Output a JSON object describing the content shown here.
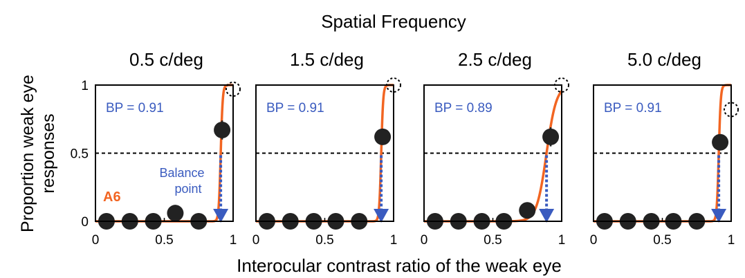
{
  "figure": {
    "super_title": "Spatial Frequency",
    "xlabel": "Interocular contrast ratio of the weak eye",
    "ylabel_lines": [
      "Proportion weak eye",
      "responses"
    ],
    "subject_label": "A6",
    "balance_label_lines": [
      "Balance",
      "point"
    ]
  },
  "colors": {
    "fit_curve": "#f26522",
    "balance_text": "#3a5bbf",
    "arrow": "#3a5bbf",
    "data_point": "#222222",
    "subject_label": "#f26522",
    "axis": "#000000"
  },
  "chart_data": [
    {
      "type": "scatter",
      "title": "0.5 c/deg",
      "bp_label": "BP = 0.91",
      "balance_point": 0.91,
      "xlim": [
        0,
        1
      ],
      "ylim": [
        0,
        1
      ],
      "xticks": [
        0,
        0.5,
        1
      ],
      "xtick_labels": [
        "0",
        "0.5",
        "1"
      ],
      "yticks": [
        0,
        0.5,
        1
      ],
      "ytick_labels": [
        "0",
        "0.5",
        "1"
      ],
      "reference_line_y": 0.5,
      "series": [
        {
          "x": [
            0.08,
            0.25,
            0.42,
            0.58,
            0.75,
            0.92
          ],
          "y": [
            0,
            0,
            0,
            0.06,
            0,
            0.67
          ],
          "err": [
            0,
            0,
            0,
            0.04,
            0,
            0.07
          ]
        }
      ],
      "hollow_point": {
        "x": 1.0,
        "y": 0.97
      }
    },
    {
      "type": "scatter",
      "title": "1.5 c/deg",
      "bp_label": "BP = 0.91",
      "balance_point": 0.91,
      "xlim": [
        0,
        1
      ],
      "ylim": [
        0,
        1
      ],
      "xticks": [
        0,
        0.5,
        1
      ],
      "xtick_labels": [
        "0",
        "0.5",
        "1"
      ],
      "yticks": [
        0,
        0.5,
        1
      ],
      "ytick_labels": [
        "",
        "",
        ""
      ],
      "reference_line_y": 0.5,
      "series": [
        {
          "x": [
            0.08,
            0.25,
            0.42,
            0.58,
            0.75,
            0.92
          ],
          "y": [
            0,
            0,
            0,
            0,
            0,
            0.62
          ],
          "err": [
            0,
            0,
            0,
            0,
            0,
            0.05
          ]
        }
      ],
      "hollow_point": {
        "x": 1.0,
        "y": 1.0
      }
    },
    {
      "type": "scatter",
      "title": "2.5 c/deg",
      "bp_label": "BP = 0.89",
      "balance_point": 0.89,
      "xlim": [
        0,
        1
      ],
      "ylim": [
        0,
        1
      ],
      "xticks": [
        0,
        0.5,
        1
      ],
      "xtick_labels": [
        "0",
        "0.5",
        "1"
      ],
      "yticks": [
        0,
        0.5,
        1
      ],
      "ytick_labels": [
        "",
        "",
        ""
      ],
      "reference_line_y": 0.5,
      "series": [
        {
          "x": [
            0.08,
            0.25,
            0.42,
            0.58,
            0.75,
            0.92
          ],
          "y": [
            0,
            0,
            0,
            0,
            0.08,
            0.62
          ],
          "err": [
            0,
            0,
            0,
            0,
            0.06,
            0.07
          ]
        }
      ],
      "hollow_point": {
        "x": 1.0,
        "y": 1.0
      }
    },
    {
      "type": "scatter",
      "title": "5.0 c/deg",
      "bp_label": "BP = 0.91",
      "balance_point": 0.91,
      "xlim": [
        0,
        1
      ],
      "ylim": [
        0,
        1
      ],
      "xticks": [
        0,
        0.5,
        1
      ],
      "xtick_labels": [
        "0",
        "0.5",
        "1"
      ],
      "yticks": [
        0,
        0.5,
        1
      ],
      "ytick_labels": [
        "",
        "",
        ""
      ],
      "reference_line_y": 0.5,
      "series": [
        {
          "x": [
            0.08,
            0.25,
            0.42,
            0.58,
            0.75,
            0.92
          ],
          "y": [
            0,
            0,
            0,
            0,
            0,
            0.58
          ],
          "err": [
            0,
            0,
            0,
            0,
            0,
            0.05
          ]
        }
      ],
      "hollow_point": {
        "x": 1.0,
        "y": 0.82
      }
    }
  ]
}
